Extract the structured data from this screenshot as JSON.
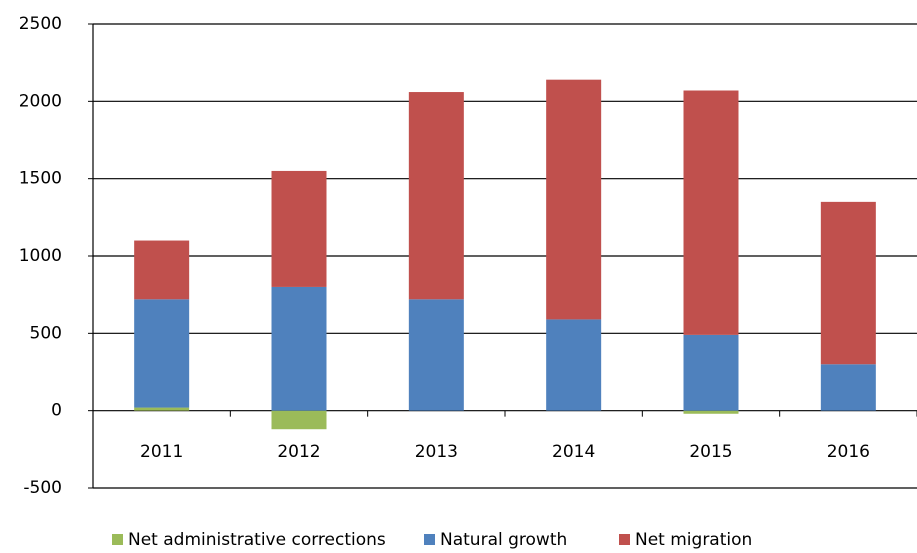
{
  "chart_data": {
    "type": "stacked-bar",
    "categories": [
      "2011",
      "2012",
      "2013",
      "2014",
      "2015",
      "2016"
    ],
    "series": [
      {
        "name": "Net administrative corrections",
        "color": "#9bbb59",
        "values": [
          20,
          -120,
          0,
          0,
          -20,
          0
        ]
      },
      {
        "name": "Natural growth",
        "color": "#4f81bd",
        "values": [
          700,
          800,
          720,
          590,
          490,
          300
        ]
      },
      {
        "name": "Net migration",
        "color": "#c0504d",
        "values": [
          380,
          750,
          1340,
          1550,
          1580,
          1050
        ]
      }
    ],
    "ylim": [
      -500,
      2500
    ],
    "yticks": [
      -500,
      0,
      500,
      1000,
      1500,
      2000,
      2500
    ],
    "grid": true
  }
}
